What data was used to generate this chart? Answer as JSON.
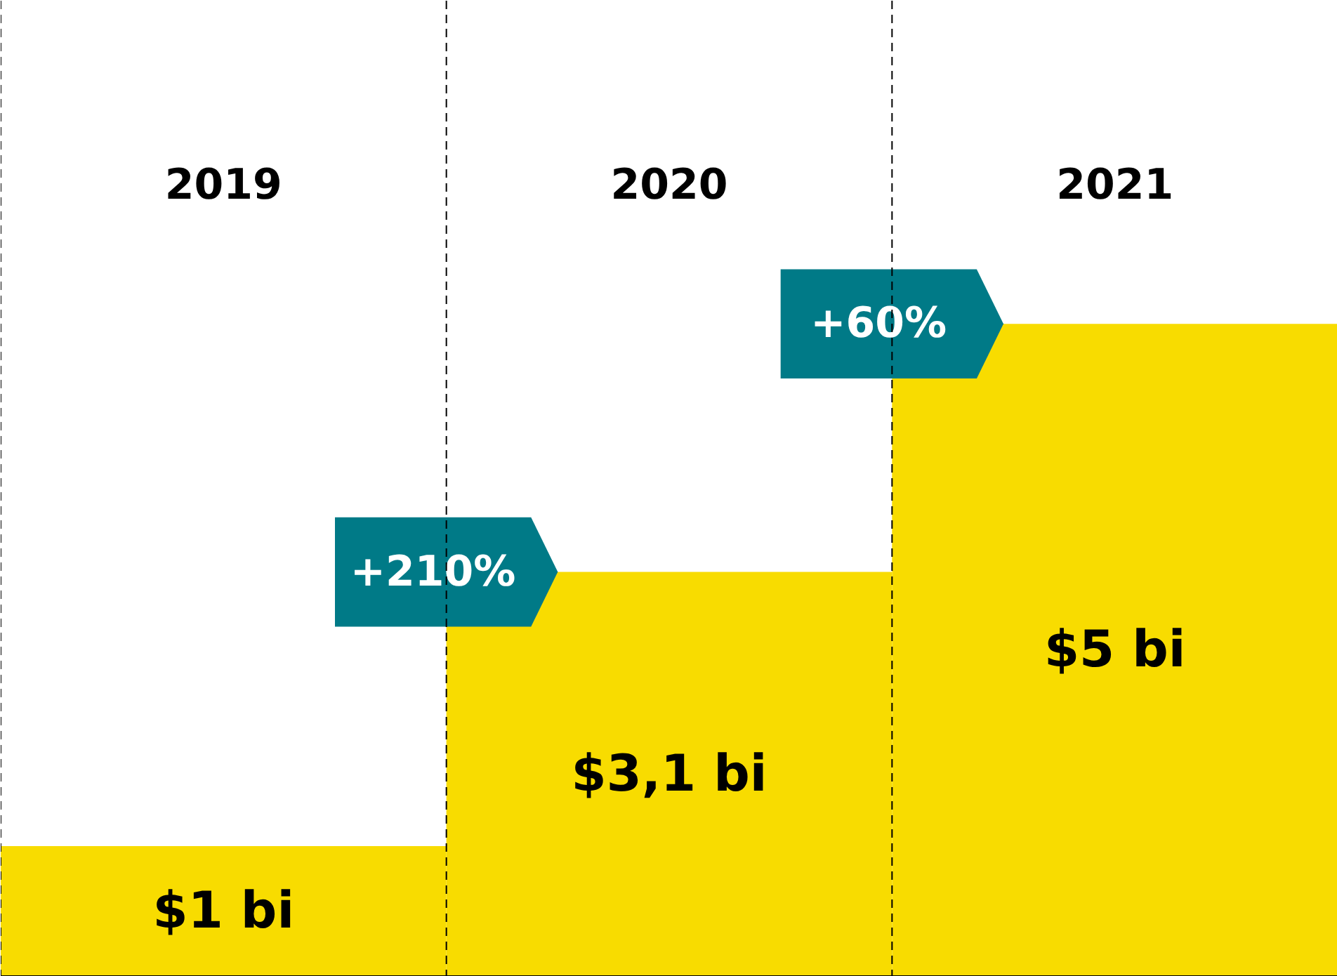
{
  "chart_data": {
    "type": "bar",
    "categories": [
      "2019",
      "2020",
      "2021"
    ],
    "values": [
      1,
      3.1,
      5
    ],
    "value_labels": [
      "$1 bi",
      "$3,1 bi",
      "$5 bi"
    ],
    "color": "#f8dc00",
    "annotations": [
      "+210%",
      "+60%"
    ],
    "grid": false
  }
}
